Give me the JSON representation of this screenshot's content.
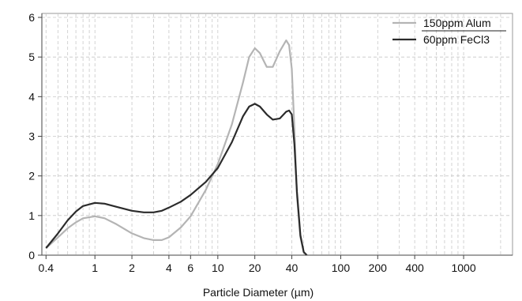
{
  "chart_data": {
    "type": "line",
    "title": "",
    "xlabel": "Particle Diameter (µm)",
    "ylabel": "",
    "x_scale": "log",
    "xlim": [
      0.37,
      2500
    ],
    "ylim": [
      0,
      6.1
    ],
    "grid": true,
    "legend_position": "top-right",
    "x_ticks": [
      0.4,
      1,
      2,
      4,
      6,
      10,
      20,
      40,
      100,
      200,
      400,
      1000
    ],
    "x_tick_labels": [
      "0.4",
      "1",
      "2",
      "4",
      "6",
      "10",
      "20",
      "40",
      "100",
      "200",
      "400",
      "1000"
    ],
    "y_ticks": [
      0,
      1,
      2,
      3,
      4,
      5,
      6
    ],
    "y_tick_labels": [
      "0",
      "1",
      "2",
      "3",
      "4",
      "5",
      "6"
    ],
    "series": [
      {
        "name": "150ppm Alum",
        "color": "#b4b4b4",
        "x": [
          0.4,
          0.5,
          0.6,
          0.7,
          0.8,
          1.0,
          1.2,
          1.5,
          2.0,
          2.5,
          3.0,
          3.5,
          4.0,
          5.0,
          6.0,
          8.0,
          10.0,
          13.0,
          16.0,
          18.0,
          20.0,
          22.0,
          25.0,
          28.0,
          32.0,
          36.0,
          38.0,
          40.0,
          42.0,
          44.0,
          47.0,
          50.0,
          53.0
        ],
        "y": [
          0.18,
          0.45,
          0.68,
          0.83,
          0.93,
          0.98,
          0.93,
          0.78,
          0.55,
          0.43,
          0.38,
          0.38,
          0.45,
          0.7,
          0.98,
          1.65,
          2.3,
          3.3,
          4.35,
          5.0,
          5.22,
          5.1,
          4.75,
          4.75,
          5.15,
          5.42,
          5.3,
          4.7,
          3.2,
          1.5,
          0.45,
          0.08,
          0.0
        ]
      },
      {
        "name": "60ppm FeCl3",
        "color": "#2b2b2b",
        "x": [
          0.4,
          0.5,
          0.6,
          0.7,
          0.8,
          1.0,
          1.2,
          1.5,
          2.0,
          2.5,
          3.0,
          3.5,
          4.0,
          5.0,
          6.0,
          8.0,
          10.0,
          13.0,
          16.0,
          18.0,
          20.0,
          22.0,
          25.0,
          28.0,
          32.0,
          36.0,
          38.0,
          40.0,
          42.0,
          44.0,
          47.0,
          50.0,
          53.0
        ],
        "y": [
          0.18,
          0.55,
          0.88,
          1.1,
          1.24,
          1.32,
          1.3,
          1.22,
          1.12,
          1.08,
          1.08,
          1.12,
          1.2,
          1.35,
          1.52,
          1.85,
          2.2,
          2.85,
          3.5,
          3.75,
          3.82,
          3.75,
          3.55,
          3.42,
          3.45,
          3.62,
          3.65,
          3.55,
          2.8,
          1.6,
          0.5,
          0.08,
          0.0
        ]
      }
    ]
  }
}
